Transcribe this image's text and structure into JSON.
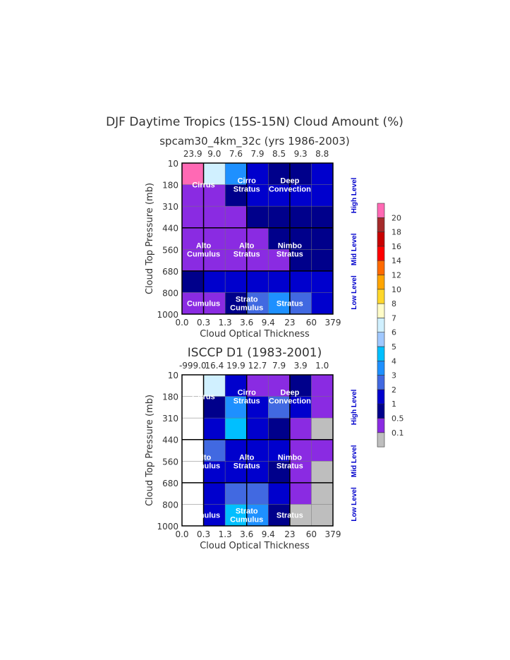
{
  "chart_data": [
    {
      "type": "heatmap",
      "title": "DJF Daytime Tropics (15S-15N) Cloud Amount (%)",
      "subtitle": "spcam30_4km_32c (yrs 1986-2003)",
      "xlabel": "Cloud Optical Thickness",
      "ylabel": "Cloud Top Pressure (mb)",
      "x_ticks": [
        "0.0",
        "0.3",
        "1.3",
        "3.6",
        "9.4",
        "23",
        "60",
        "379"
      ],
      "y_ticks": [
        "10",
        "180",
        "310",
        "440",
        "560",
        "680",
        "800",
        "1000"
      ],
      "column_totals": [
        "23.9",
        "9.0",
        "7.6",
        "7.9",
        "8.5",
        "9.3",
        "8.8"
      ],
      "values": [
        [
          25,
          6.5,
          3.5,
          1.5,
          0.75,
          0.75,
          1.5
        ],
        [
          0.3,
          0.3,
          0.75,
          1.5,
          1.5,
          1.5,
          1.5
        ],
        [
          0.3,
          0.3,
          0.3,
          0.75,
          0.75,
          0.75,
          0.75
        ],
        [
          0.3,
          0.3,
          0.3,
          0.3,
          0.75,
          0.75,
          0.75
        ],
        [
          0.3,
          0.3,
          0.3,
          0.3,
          0.3,
          0.75,
          0.75
        ],
        [
          0.75,
          1.5,
          1.5,
          1.5,
          1.5,
          1.5,
          1.5
        ],
        [
          0.3,
          0.3,
          0.75,
          2.5,
          3.5,
          2.5,
          1.5
        ]
      ]
    },
    {
      "type": "heatmap",
      "title": "ISCCP D1 (1983-2001)",
      "xlabel": "Cloud Optical Thickness",
      "ylabel": "Cloud Top Pressure (mb)",
      "x_ticks": [
        "0.0",
        "0.3",
        "1.3",
        "3.6",
        "9.4",
        "23",
        "60",
        "379"
      ],
      "y_ticks": [
        "10",
        "180",
        "310",
        "440",
        "560",
        "680",
        "800",
        "1000"
      ],
      "column_totals": [
        "-999.0",
        "16.4",
        "19.9",
        "12.7",
        "7.9",
        "3.9",
        "1.0"
      ],
      "values": [
        [
          null,
          6.5,
          1.5,
          0.3,
          0.3,
          0.75,
          0.3
        ],
        [
          null,
          0.75,
          3.5,
          1.5,
          2.5,
          1.5,
          0.3
        ],
        [
          null,
          1.5,
          4.5,
          1.5,
          0.75,
          0.3,
          0.05
        ],
        [
          null,
          2.5,
          1.5,
          1.5,
          1.5,
          0.3,
          0.3
        ],
        [
          null,
          1.5,
          1.5,
          1.5,
          0.75,
          0.3,
          0.05
        ],
        [
          null,
          1.5,
          2.5,
          2.5,
          1.5,
          0.3,
          0.05
        ],
        [
          null,
          1.5,
          4.5,
          3.5,
          0.75,
          0.05,
          0.05
        ]
      ]
    }
  ],
  "cloud_types": [
    [
      "Cirrus"
    ],
    [
      "Cirro",
      "Stratus"
    ],
    [
      "Deep",
      "Convection"
    ],
    [
      "Alto",
      "Cumulus"
    ],
    [
      "Alto",
      "Stratus"
    ],
    [
      "Nimbo",
      "Stratus"
    ],
    [
      "Cumulus"
    ],
    [
      "Strato",
      "Cumulus"
    ],
    [
      "Stratus"
    ]
  ],
  "levels": [
    "High Level",
    "Mid Level",
    "Low Level"
  ],
  "colorbar": {
    "labels": [
      "0.1",
      "0.5",
      "1",
      "2",
      "3",
      "4",
      "5",
      "6",
      "7",
      "8",
      "10",
      "12",
      "14",
      "16",
      "18",
      "20"
    ],
    "colors": [
      "#bebebe",
      "#8a2be2",
      "#00008b",
      "#0000cd",
      "#4169e1",
      "#1e90ff",
      "#00bfff",
      "#a0c8ff",
      "#d0f0ff",
      "#fffcc8",
      "#ffd72a",
      "#ffa500",
      "#ff6a00",
      "#ff0000",
      "#c80000",
      "#a52a2a",
      "#ff69b4"
    ]
  },
  "missing_color": "#ffffff"
}
